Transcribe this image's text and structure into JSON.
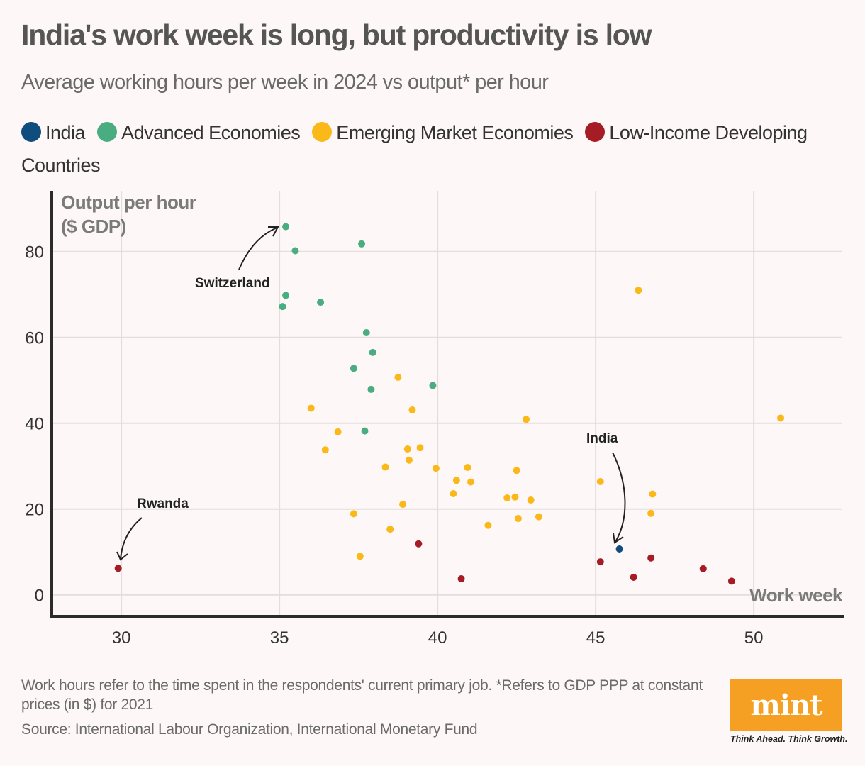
{
  "header": {
    "title": "India's work week is long, but productivity is low",
    "subtitle": "Average working hours per week in 2024 vs output* per hour"
  },
  "legend": [
    {
      "label": "India",
      "color": "#0e4d7d"
    },
    {
      "label": "Advanced Economies",
      "color": "#4aad82"
    },
    {
      "label": "Emerging Market Economies",
      "color": "#fbb819"
    },
    {
      "label": "Low-Income Developing Countries",
      "color": "#a51c24"
    }
  ],
  "footer": {
    "note": "Work hours refer to the time spent in the respondents' current primary job. *Refers to GDP PPP at constant prices (in $) for 2021",
    "source": "Source: International Labour Organization, International Monetary Fund",
    "logo_text": "mint",
    "tagline": "Think Ahead. Think Growth."
  },
  "chart_data": {
    "type": "scatter",
    "title": "India's work week is long, but productivity is low",
    "subtitle": "Average working hours per week in 2024 vs output* per hour",
    "xlabel": "Work week",
    "ylabel": "Output per hour ($ GDP)",
    "ylabel_lines": [
      "Output per hour",
      "($ GDP)"
    ],
    "xlim": [
      27.8,
      52.8
    ],
    "ylim": [
      -5,
      94
    ],
    "xticks": [
      30,
      35,
      40,
      45,
      50
    ],
    "yticks": [
      0,
      20,
      40,
      60,
      80
    ],
    "grid": true,
    "legend_position": "top",
    "series": [
      {
        "name": "India",
        "color": "#0e4d7d",
        "points": [
          [
            45.75,
            10.7
          ]
        ]
      },
      {
        "name": "Advanced Economies",
        "color": "#4aad82",
        "points": [
          [
            35.2,
            85.8
          ],
          [
            35.5,
            80.2
          ],
          [
            37.6,
            81.8
          ],
          [
            35.2,
            69.8
          ],
          [
            35.1,
            67.2
          ],
          [
            36.3,
            68.2
          ],
          [
            37.75,
            61.1
          ],
          [
            37.95,
            56.5
          ],
          [
            37.35,
            52.8
          ],
          [
            37.9,
            47.9
          ],
          [
            39.85,
            48.8
          ],
          [
            37.7,
            38.2
          ]
        ]
      },
      {
        "name": "Emerging Market Economies",
        "color": "#fbb819",
        "points": [
          [
            38.75,
            50.7
          ],
          [
            36.0,
            43.5
          ],
          [
            39.2,
            43.1
          ],
          [
            36.85,
            38.0
          ],
          [
            36.45,
            33.8
          ],
          [
            39.05,
            34.0
          ],
          [
            39.45,
            34.3
          ],
          [
            39.1,
            31.4
          ],
          [
            38.35,
            29.8
          ],
          [
            39.95,
            29.5
          ],
          [
            40.95,
            29.7
          ],
          [
            40.6,
            26.7
          ],
          [
            41.05,
            26.3
          ],
          [
            40.5,
            23.6
          ],
          [
            38.9,
            21.1
          ],
          [
            37.35,
            18.9
          ],
          [
            38.5,
            15.3
          ],
          [
            37.55,
            9.0
          ],
          [
            41.6,
            16.2
          ],
          [
            42.8,
            40.9
          ],
          [
            42.5,
            29.0
          ],
          [
            42.2,
            22.6
          ],
          [
            42.45,
            22.8
          ],
          [
            42.95,
            22.1
          ],
          [
            42.55,
            17.8
          ],
          [
            43.2,
            18.2
          ],
          [
            45.15,
            26.4
          ],
          [
            46.8,
            23.5
          ],
          [
            46.75,
            19.0
          ],
          [
            46.35,
            71.0
          ],
          [
            50.85,
            41.2
          ]
        ]
      },
      {
        "name": "Low-Income Developing Countries",
        "color": "#a51c24",
        "points": [
          [
            29.9,
            6.2
          ],
          [
            39.4,
            11.9
          ],
          [
            40.75,
            3.75
          ],
          [
            45.15,
            7.7
          ],
          [
            46.2,
            4.1
          ],
          [
            46.75,
            8.6
          ],
          [
            48.4,
            6.1
          ],
          [
            49.3,
            3.2
          ]
        ]
      }
    ],
    "annotations": [
      {
        "label": "Switzerland",
        "x": 35.2,
        "y": 85.8
      },
      {
        "label": "Rwanda",
        "x": 29.9,
        "y": 6.2
      },
      {
        "label": "India",
        "x": 45.75,
        "y": 10.7
      }
    ]
  }
}
